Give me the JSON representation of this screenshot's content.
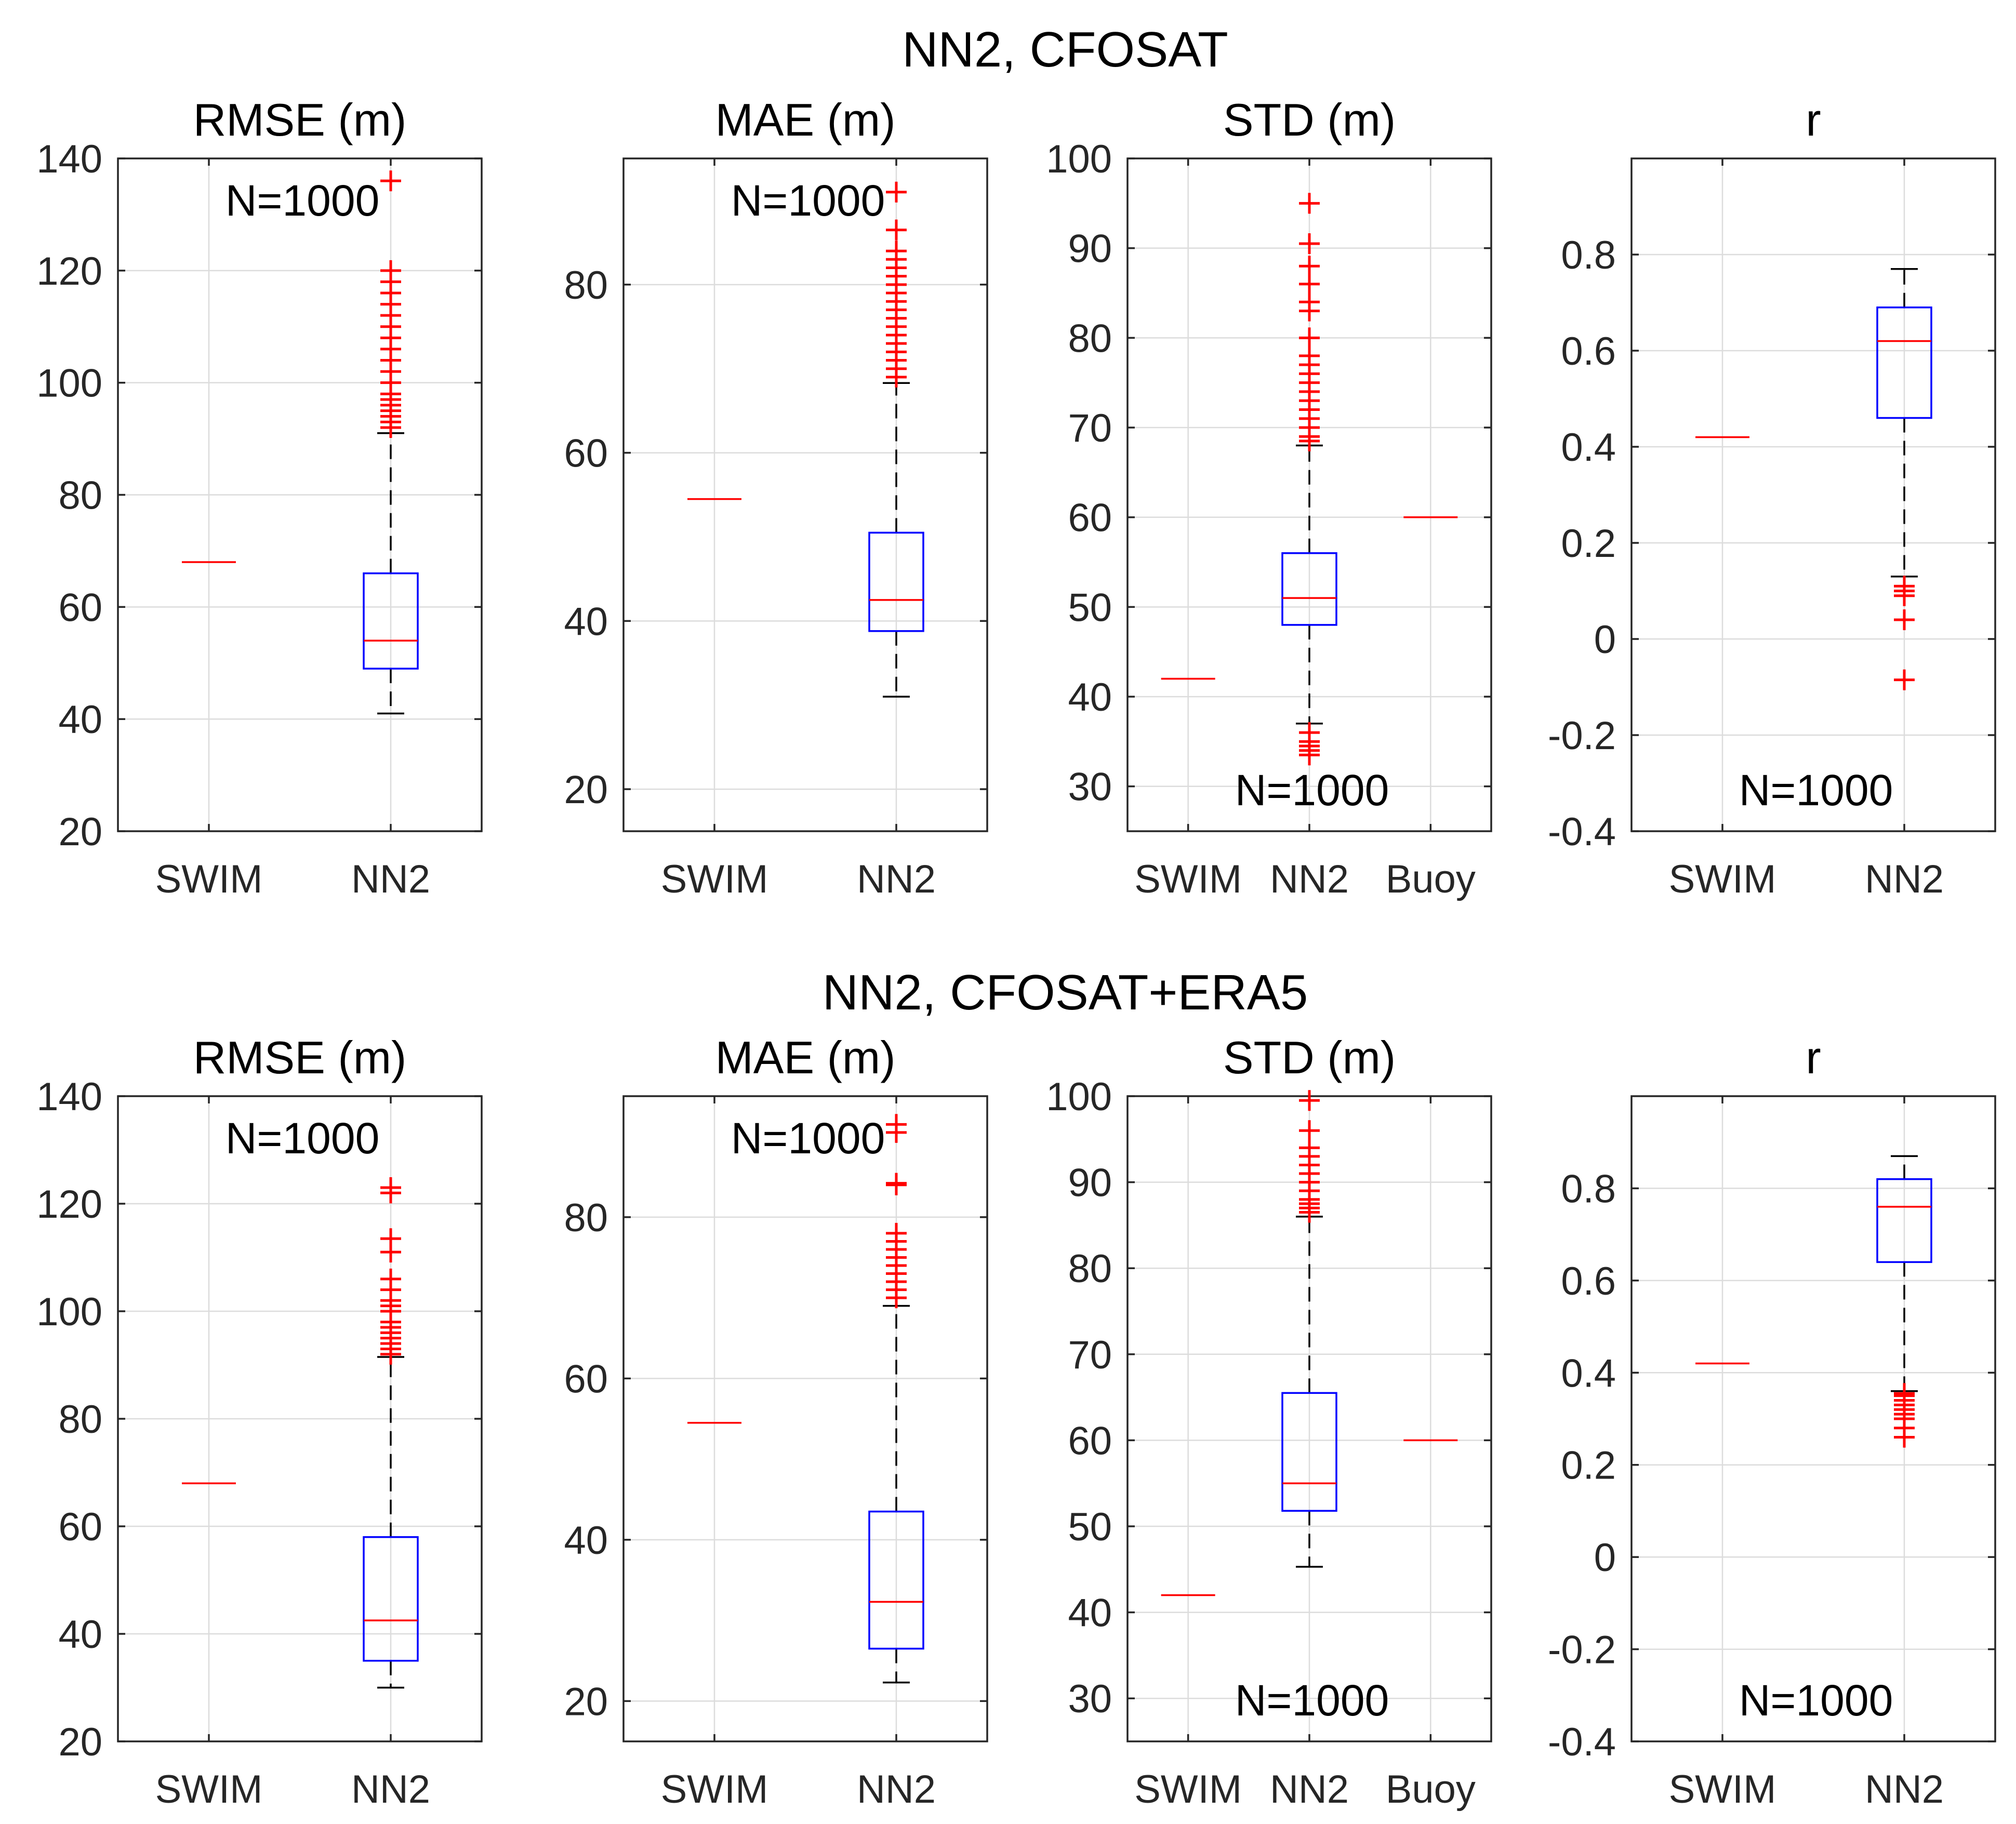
{
  "figure": {
    "row_titles": [
      "NN2, CFOSAT",
      "NN2, CFOSAT+ERA5"
    ],
    "colors": {
      "box": "#0000ff",
      "median": "#ff0000",
      "outlier": "#ff0000",
      "whisker": "#000000"
    }
  },
  "chart_data": [
    {
      "type": "box",
      "row": 0,
      "col": 0,
      "title": "RMSE (m)",
      "annotation": "N=1000",
      "annotation_place": "top",
      "ylim": [
        20,
        140
      ],
      "yticks": [
        20,
        40,
        60,
        80,
        100,
        120,
        140
      ],
      "categories": [
        "SWIM",
        "NN2"
      ],
      "boxes": [
        {
          "category": "SWIM",
          "median": 68
        },
        {
          "category": "NN2",
          "q1": 49,
          "median": 54,
          "q3": 66,
          "whisker_low": 41,
          "whisker_high": 91,
          "outliers": [
            92,
            93,
            94,
            95,
            96,
            97,
            98,
            100,
            102,
            104,
            106,
            108,
            110,
            112,
            114,
            116,
            118,
            120,
            136
          ]
        }
      ]
    },
    {
      "type": "box",
      "row": 0,
      "col": 1,
      "title": "MAE (m)",
      "annotation": "N=1000",
      "annotation_place": "top",
      "ylim": [
        15,
        95
      ],
      "yticks": [
        20,
        40,
        60,
        80
      ],
      "categories": [
        "SWIM",
        "NN2"
      ],
      "boxes": [
        {
          "category": "SWIM",
          "median": 54.5
        },
        {
          "category": "NN2",
          "q1": 38.8,
          "median": 42.5,
          "q3": 50.5,
          "whisker_low": 31,
          "whisker_high": 68.3,
          "outliers": [
            69,
            70,
            71,
            72,
            73,
            74,
            75,
            76,
            77,
            78,
            79,
            80,
            81,
            82,
            83,
            84,
            86.5,
            91
          ]
        }
      ]
    },
    {
      "type": "box",
      "row": 0,
      "col": 2,
      "title": "STD (m)",
      "annotation": "N=1000",
      "annotation_place": "bottom",
      "ylim": [
        25,
        100
      ],
      "yticks": [
        30,
        40,
        50,
        60,
        70,
        80,
        90,
        100
      ],
      "categories": [
        "SWIM",
        "NN2",
        "Buoy"
      ],
      "boxes": [
        {
          "category": "SWIM",
          "median": 42
        },
        {
          "category": "NN2",
          "q1": 48,
          "median": 51,
          "q3": 56,
          "whisker_low": 37,
          "whisker_high": 68,
          "outliers": [
            33.5,
            34,
            34.5,
            35,
            36,
            68.5,
            69,
            70,
            71,
            72,
            73,
            74,
            75,
            76,
            77,
            78,
            80,
            83,
            84,
            86,
            88,
            90.5,
            95
          ]
        },
        {
          "category": "Buoy",
          "median": 60
        }
      ]
    },
    {
      "type": "box",
      "row": 0,
      "col": 3,
      "title": "r",
      "annotation": "N=1000",
      "annotation_place": "bottom",
      "ylim": [
        -0.4,
        1.0
      ],
      "yticks": [
        -0.4,
        -0.2,
        0,
        0.2,
        0.4,
        0.6,
        0.8
      ],
      "categories": [
        "SWIM",
        "NN2"
      ],
      "boxes": [
        {
          "category": "SWIM",
          "median": 0.42
        },
        {
          "category": "NN2",
          "q1": 0.46,
          "median": 0.62,
          "q3": 0.69,
          "whisker_low": 0.13,
          "whisker_high": 0.77,
          "outliers": [
            0.11,
            0.1,
            0.09,
            0.04,
            -0.085
          ]
        }
      ]
    },
    {
      "type": "box",
      "row": 1,
      "col": 0,
      "title": "RMSE (m)",
      "annotation": "N=1000",
      "annotation_place": "top",
      "ylim": [
        20,
        140
      ],
      "yticks": [
        20,
        40,
        60,
        80,
        100,
        120,
        140
      ],
      "categories": [
        "SWIM",
        "NN2"
      ],
      "boxes": [
        {
          "category": "SWIM",
          "median": 68
        },
        {
          "category": "NN2",
          "q1": 35,
          "median": 42.5,
          "q3": 58,
          "whisker_low": 30,
          "whisker_high": 91.5,
          "outliers": [
            92,
            93,
            94,
            95,
            96,
            97,
            98,
            100,
            101,
            102,
            104,
            106,
            111,
            113.5,
            122,
            123
          ]
        }
      ]
    },
    {
      "type": "box",
      "row": 1,
      "col": 1,
      "title": "MAE (m)",
      "annotation": "N=1000",
      "annotation_place": "top",
      "ylim": [
        15,
        95
      ],
      "yticks": [
        20,
        40,
        60,
        80
      ],
      "categories": [
        "SWIM",
        "NN2"
      ],
      "boxes": [
        {
          "category": "SWIM",
          "median": 54.5
        },
        {
          "category": "NN2",
          "q1": 26.5,
          "median": 32.3,
          "q3": 43.5,
          "whisker_low": 22.3,
          "whisker_high": 69,
          "outliers": [
            70,
            71,
            72,
            73,
            74,
            75,
            76,
            77,
            78,
            84,
            84.2,
            90.5,
            91.5
          ]
        }
      ]
    },
    {
      "type": "box",
      "row": 1,
      "col": 2,
      "title": "STD (m)",
      "annotation": "N=1000",
      "annotation_place": "bottom",
      "ylim": [
        25,
        100
      ],
      "yticks": [
        30,
        40,
        50,
        60,
        70,
        80,
        90,
        100
      ],
      "categories": [
        "SWIM",
        "NN2",
        "Buoy"
      ],
      "boxes": [
        {
          "category": "SWIM",
          "median": 42
        },
        {
          "category": "NN2",
          "q1": 51.8,
          "median": 55,
          "q3": 65.5,
          "whisker_low": 45.3,
          "whisker_high": 86,
          "outliers": [
            86.5,
            87,
            87.5,
            88,
            89,
            90,
            91,
            92,
            93,
            94,
            96,
            99.5
          ]
        },
        {
          "category": "Buoy",
          "median": 60
        }
      ]
    },
    {
      "type": "box",
      "row": 1,
      "col": 3,
      "title": "r",
      "annotation": "N=1000",
      "annotation_place": "bottom",
      "ylim": [
        -0.4,
        1.0
      ],
      "yticks": [
        -0.4,
        -0.2,
        0,
        0.2,
        0.4,
        0.6,
        0.8
      ],
      "categories": [
        "SWIM",
        "NN2"
      ],
      "boxes": [
        {
          "category": "SWIM",
          "median": 0.42
        },
        {
          "category": "NN2",
          "q1": 0.64,
          "median": 0.76,
          "q3": 0.82,
          "whisker_low": 0.36,
          "whisker_high": 0.87,
          "outliers": [
            0.355,
            0.35,
            0.34,
            0.33,
            0.32,
            0.31,
            0.3,
            0.28,
            0.26
          ]
        }
      ]
    }
  ]
}
